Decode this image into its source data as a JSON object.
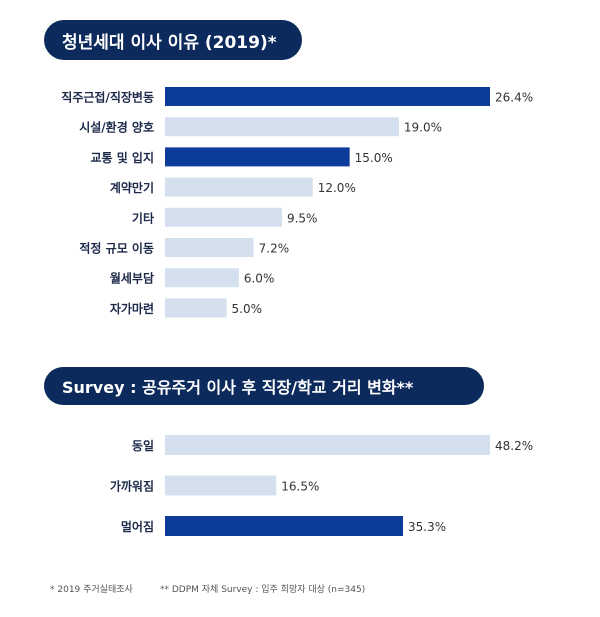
{
  "colors": {
    "dark": "#0d3b99",
    "light": "#d5e0ee",
    "pill": "#0d2a5c",
    "label": "#1d2a4a"
  },
  "chart_data": [
    {
      "type": "bar",
      "orientation": "horizontal",
      "title": "청년세대 이사 이유 (2019)*",
      "categories": [
        "직주근접/직장변동",
        "시설/환경 양호",
        "교통 및 입지",
        "계약만기",
        "기타",
        "적정 규모 이동",
        "월세부담",
        "자가마련"
      ],
      "values": [
        26.4,
        19.0,
        15.0,
        12.0,
        9.5,
        7.2,
        6.0,
        5.0
      ],
      "value_labels": [
        "26.4%",
        "19.0%",
        "15.0%",
        "12.0%",
        "9.5%",
        "7.2%",
        "6.0%",
        "5.0%"
      ],
      "highlight": [
        true,
        false,
        true,
        false,
        false,
        false,
        false,
        false
      ],
      "xlim": [
        0,
        26.4
      ]
    },
    {
      "type": "bar",
      "orientation": "horizontal",
      "title": "Survey : 공유주거 이사 후 직장/학교 거리 변화**",
      "categories": [
        "동일",
        "가까워짐",
        "멀어짐"
      ],
      "values": [
        48.2,
        16.5,
        35.3
      ],
      "value_labels": [
        "48.2%",
        "16.5%",
        "35.3%"
      ],
      "highlight": [
        false,
        false,
        true
      ],
      "xlim": [
        0,
        48.2
      ]
    }
  ],
  "footnotes": [
    "* 2019 주거실태조사",
    "** DDPM 자체 Survey : 입주 희망자 대상 (n=345)"
  ]
}
